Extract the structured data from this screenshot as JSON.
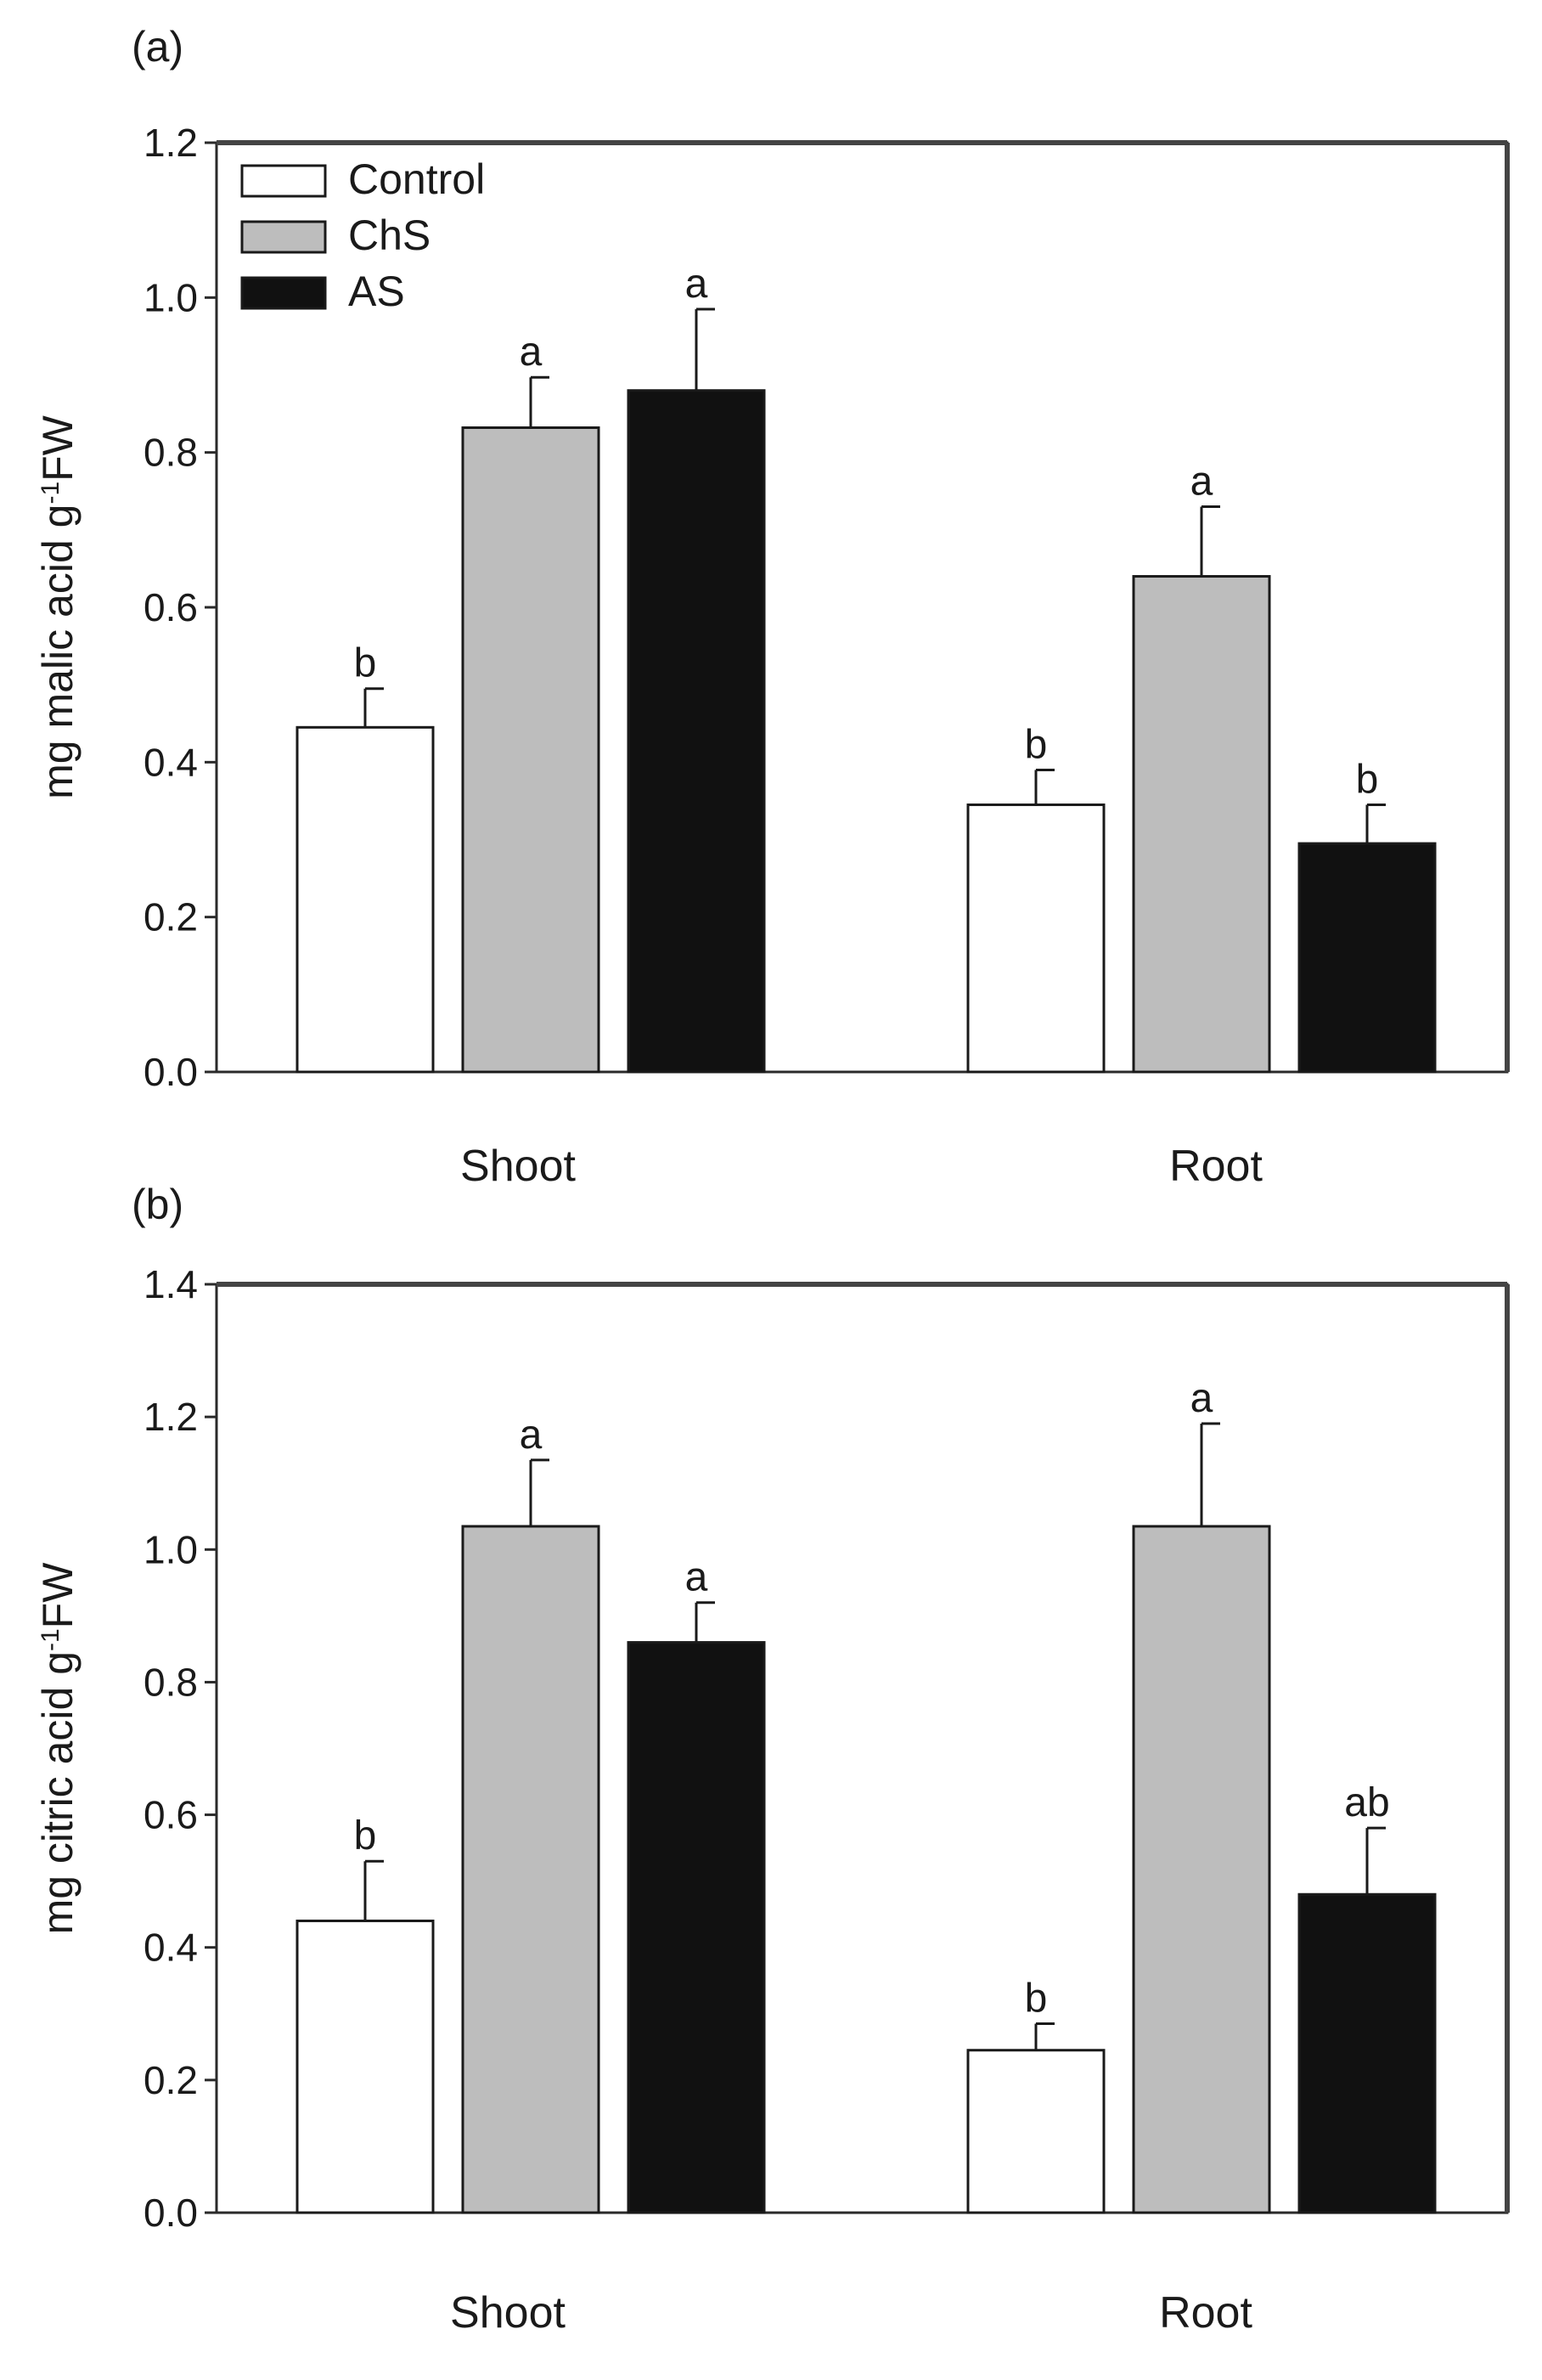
{
  "chart_data": [
    {
      "type": "bar",
      "panel_label": "(a)",
      "ylabel": "mg malic acid g",
      "ylabel_sup": "-1",
      "ylabel_suffix": "FW",
      "ylim": [
        0,
        1.2
      ],
      "yticks": [
        "0.0",
        "0.2",
        "0.4",
        "0.6",
        "0.8",
        "1.0",
        "1.2"
      ],
      "categories": [
        "Shoot",
        "Root"
      ],
      "legend_position": "top-left",
      "series": [
        {
          "name": "Control",
          "color": "#ffffff",
          "values": [
            0.445,
            0.345
          ],
          "errors": [
            0.05,
            0.045
          ],
          "letters": [
            "b",
            "b"
          ]
        },
        {
          "name": "ChS",
          "color": "#bdbdbd",
          "values": [
            0.832,
            0.64
          ],
          "errors": [
            0.065,
            0.09
          ],
          "letters": [
            "a",
            "a"
          ]
        },
        {
          "name": "AS",
          "color": "#111111",
          "values": [
            0.88,
            0.295
          ],
          "errors": [
            0.105,
            0.05
          ],
          "letters": [
            "a",
            "b"
          ]
        }
      ]
    },
    {
      "type": "bar",
      "panel_label": "(b)",
      "ylabel": "mg citric acid g",
      "ylabel_sup": "-1",
      "ylabel_suffix": "FW",
      "ylim": [
        0,
        1.4
      ],
      "yticks": [
        "0.0",
        "0.2",
        "0.4",
        "0.6",
        "0.8",
        "1.0",
        "1.2",
        "1.4"
      ],
      "categories": [
        "Shoot",
        "Root"
      ],
      "series": [
        {
          "name": "Control",
          "color": "#ffffff",
          "values": [
            0.44,
            0.245
          ],
          "errors": [
            0.09,
            0.04
          ],
          "letters": [
            "b",
            "b"
          ]
        },
        {
          "name": "ChS",
          "color": "#bdbdbd",
          "values": [
            1.035,
            1.035
          ],
          "errors": [
            0.1,
            0.155
          ],
          "letters": [
            "a",
            "a"
          ]
        },
        {
          "name": "AS",
          "color": "#111111",
          "values": [
            0.86,
            0.48
          ],
          "errors": [
            0.06,
            0.1
          ],
          "letters": [
            "a",
            "ab"
          ]
        }
      ]
    }
  ]
}
